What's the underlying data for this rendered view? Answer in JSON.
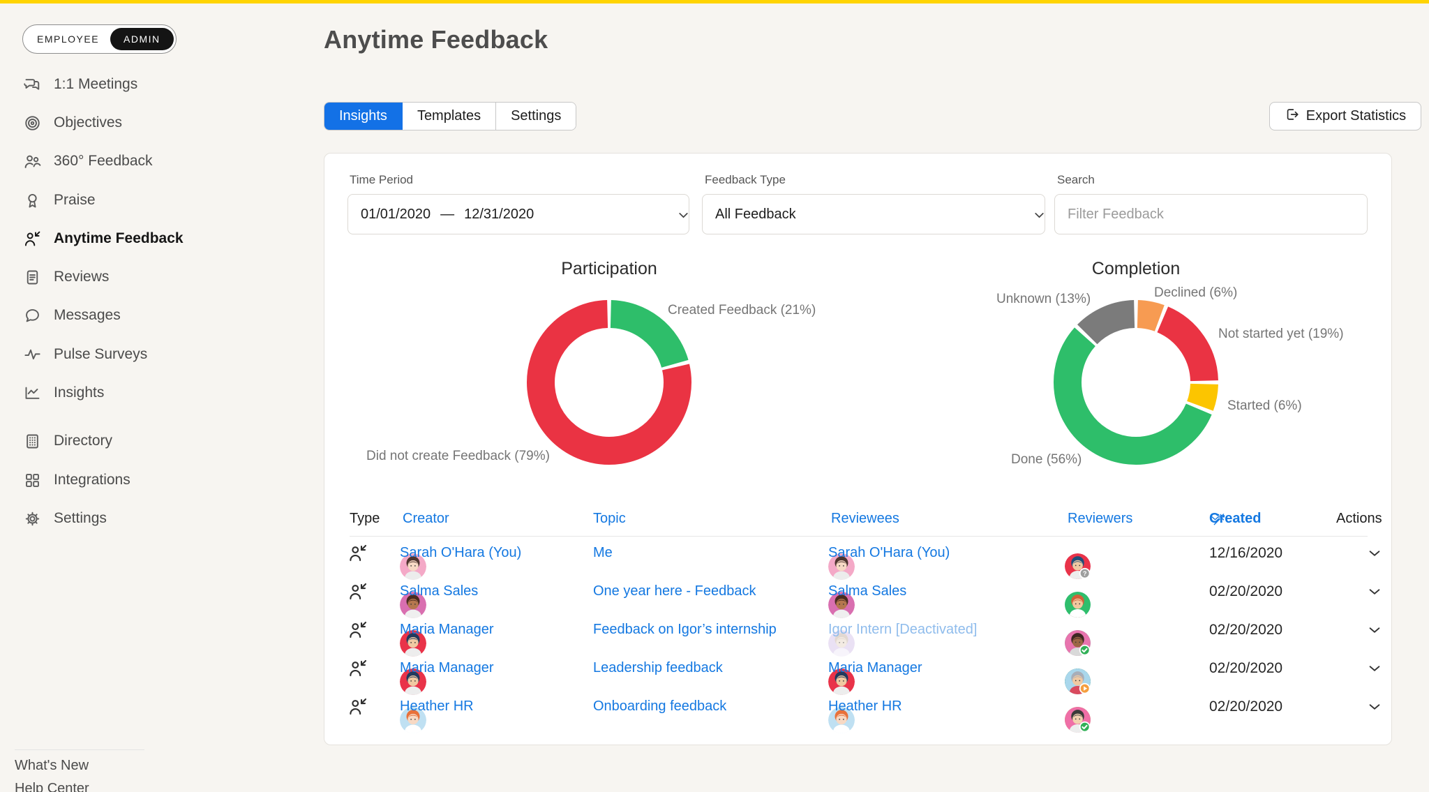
{
  "colors": {
    "topbar": "#FFD402",
    "page_bg": "#F7F5F1",
    "link": "#1478E1",
    "tab_active": "#1371E6",
    "chart_green": "#2EBE6A",
    "chart_red": "#EA3343",
    "chart_orange": "#F79B52",
    "chart_yellow": "#FCC500",
    "chart_gray": "#7B7B7B"
  },
  "sidebar": {
    "toggle": {
      "left": "EMPLOYEE",
      "right": "ADMIN"
    },
    "items": [
      {
        "icon": "meetings-icon",
        "label": "1:1 Meetings",
        "active": false
      },
      {
        "icon": "objectives-icon",
        "label": "Objectives",
        "active": false
      },
      {
        "icon": "feedback360-icon",
        "label": "360° Feedback",
        "active": false
      },
      {
        "icon": "praise-icon",
        "label": "Praise",
        "active": false
      },
      {
        "icon": "anytime-feedback-icon",
        "label": "Anytime Feedback",
        "active": true
      },
      {
        "icon": "reviews-icon",
        "label": "Reviews",
        "active": false
      },
      {
        "icon": "messages-icon",
        "label": "Messages",
        "active": false
      },
      {
        "icon": "pulse-icon",
        "label": "Pulse Surveys",
        "active": false
      },
      {
        "icon": "insights-icon",
        "label": "Insights",
        "active": false
      },
      {
        "icon": "directory-icon",
        "label": "Directory",
        "active": false,
        "group2": true
      },
      {
        "icon": "integrations-icon",
        "label": "Integrations",
        "active": false,
        "group2": true
      },
      {
        "icon": "settings-icon",
        "label": "Settings",
        "active": false,
        "group2": true
      }
    ],
    "footer": [
      "What's New",
      "Help Center"
    ]
  },
  "header": {
    "title": "Anytime Feedback",
    "tabs": [
      "Insights",
      "Templates",
      "Settings"
    ],
    "active_tab": "Insights",
    "export_label": "Export Statistics"
  },
  "filters": {
    "time_period": {
      "label": "Time Period",
      "start": "01/01/2020",
      "separator": "—",
      "end": "12/31/2020"
    },
    "feedback_type": {
      "label": "Feedback Type",
      "value": "All Feedback"
    },
    "search": {
      "label": "Search",
      "placeholder": "Filter Feedback"
    }
  },
  "chart_data": [
    {
      "type": "pie",
      "title": "Participation",
      "legend_position": "around",
      "grid": false,
      "slices": [
        {
          "label": "Created Feedback",
          "pct": 21,
          "color": "#2EBE6A"
        },
        {
          "label": "Did not create Feedback",
          "pct": 79,
          "color": "#EA3343"
        }
      ]
    },
    {
      "type": "pie",
      "title": "Completion",
      "legend_position": "around",
      "grid": false,
      "slices": [
        {
          "label": "Declined",
          "pct": 6,
          "color": "#F79B52"
        },
        {
          "label": "Not started yet",
          "pct": 19,
          "color": "#EA3343"
        },
        {
          "label": "Started",
          "pct": 6,
          "color": "#FCC500"
        },
        {
          "label": "Done",
          "pct": 56,
          "color": "#2EBE6A"
        },
        {
          "label": "Unknown",
          "pct": 13,
          "color": "#7B7B7B"
        }
      ]
    }
  ],
  "people": {
    "sarah": {
      "bg": "#F4A9C7",
      "skin": "#F7D9C4",
      "hair": "#4E342E",
      "shirt": "#ECECEC"
    },
    "salma": {
      "bg": "#D96FB0",
      "skin": "#B5774E",
      "hair": "#4A2C20",
      "shirt": "#EFEFEF"
    },
    "maria": {
      "bg": "#E93349",
      "skin": "#F0C9A2",
      "hair": "#223A5E",
      "shirt": "#EDEDED"
    },
    "heather": {
      "bg": "#BFE0F2",
      "skin": "#F7D9C4",
      "hair": "#E8713A",
      "shirt": "#FFFFFF"
    },
    "igor": {
      "bg": "#D9C9EC",
      "skin": "#EADBCD",
      "hair": "#CBB9AB",
      "shirt": "#F1ECF7"
    },
    "darkwoman_pink": {
      "bg": "#E874AE",
      "skin": "#9C6644",
      "hair": "#3E2723",
      "shirt": "#D9D9D9"
    },
    "bluewoman_red": {
      "bg": "#E93349",
      "skin": "#F0C9A2",
      "hair": "#1F4E79",
      "shirt": "#EDEDED"
    },
    "blondman_green": {
      "bg": "#0E9D58",
      "skin": "#F2D1A3",
      "hair": "#E6C45C",
      "shirt": "#FFFFFF"
    },
    "graywoman_blue": {
      "bg": "#A9D7EC",
      "skin": "#F0C9A2",
      "hair": "#A8AEB8",
      "shirt": "#D94A5E"
    },
    "beardman_green": {
      "bg": "#2FBE6C",
      "skin": "#F2C79E",
      "hair": "#D2603A",
      "shirt": "#FFFFFF"
    },
    "darkwoman_purple": {
      "bg": "#9A6FB5",
      "skin": "#9C6644",
      "hair": "#3E2723",
      "shirt": "#E5E5E5"
    },
    "darkman_yellow": {
      "bg": "#F2CE4B",
      "skin": "#8D5A3B",
      "hair": "#2B2B2B",
      "shirt": "#EDEDED"
    },
    "whitehair_green": {
      "bg": "#A5DE7C",
      "skin": "#C08A5E",
      "hair": "#EFEFEA",
      "shirt": "#FFFFFF"
    },
    "darkhair_pink": {
      "bg": "#EF6FA7",
      "skin": "#F2D1B0",
      "hair": "#3A3A3A",
      "shirt": "#EDEDED"
    }
  },
  "badges": {
    "question": {
      "bg": "#9E9E9E"
    },
    "check": {
      "bg": "#31B057"
    },
    "cross": {
      "bg": "#E53945"
    },
    "play": {
      "bg": "#F59E3F"
    }
  },
  "table": {
    "columns": [
      {
        "label": "Type",
        "style": "plain"
      },
      {
        "label": "Creator",
        "style": "link"
      },
      {
        "label": "Topic",
        "style": "link"
      },
      {
        "label": "Reviewees",
        "style": "link"
      },
      {
        "label": "Reviewers",
        "style": "link"
      },
      {
        "label": "Created",
        "style": "link bold",
        "sort": true,
        "magic": true
      },
      {
        "label": "Actions",
        "style": "plain"
      }
    ],
    "rows": [
      {
        "creator": {
          "name": "Sarah O'Hara (You)",
          "person": "sarah"
        },
        "topic": "Me",
        "reviewee": {
          "name": "Sarah O'Hara (You)",
          "person": "sarah",
          "deactivated": false
        },
        "reviewers": [
          {
            "person": "darkwoman_pink",
            "badge": "question"
          },
          {
            "person": "bluewoman_red",
            "badge": "question"
          }
        ],
        "created": "12/16/2020"
      },
      {
        "creator": {
          "name": "Salma Sales",
          "person": "salma"
        },
        "topic": "One year here - Feedback",
        "reviewee": {
          "name": "Salma Sales",
          "person": "salma",
          "deactivated": false
        },
        "reviewers": [
          {
            "person": "blondman_green",
            "badge": null
          },
          {
            "person": "graywoman_blue",
            "badge": null
          },
          {
            "person": "beardman_green",
            "badge": null
          }
        ],
        "created": "02/20/2020"
      },
      {
        "creator": {
          "name": "Maria Manager",
          "person": "maria"
        },
        "topic": "Feedback on Igor’s internship",
        "reviewee": {
          "name": "Igor Intern [Deactivated]",
          "person": "igor",
          "deactivated": true
        },
        "reviewers": [
          {
            "person": "graywoman_blue",
            "badge": "check"
          },
          {
            "person": "beardman_green",
            "badge": "check"
          },
          {
            "person": "darkwoman_pink",
            "badge": "check"
          }
        ],
        "created": "02/20/2020"
      },
      {
        "creator": {
          "name": "Maria Manager",
          "person": "maria"
        },
        "topic": "Leadership feedback",
        "reviewee": {
          "name": "Maria Manager",
          "person": "maria",
          "deactivated": false
        },
        "reviewers": [
          {
            "person": "beardman_green",
            "badge": "check"
          },
          {
            "person": "darkwoman_purple",
            "badge": "check"
          },
          {
            "person": "blondman_green",
            "badge": "cross"
          },
          {
            "person": "graywoman_blue",
            "badge": "play"
          }
        ],
        "created": "02/20/2020"
      },
      {
        "creator": {
          "name": "Heather HR",
          "person": "heather"
        },
        "topic": "Onboarding feedback",
        "reviewee": {
          "name": "Heather HR",
          "person": "heather",
          "deactivated": false
        },
        "reviewers": [
          {
            "person": "darkman_yellow",
            "badge": "check"
          },
          {
            "person": "bluewoman_red",
            "badge": "check"
          },
          {
            "person": "whitehair_green",
            "badge": "check"
          },
          {
            "person": "darkhair_pink",
            "badge": "check"
          }
        ],
        "created": "02/20/2020"
      }
    ]
  }
}
